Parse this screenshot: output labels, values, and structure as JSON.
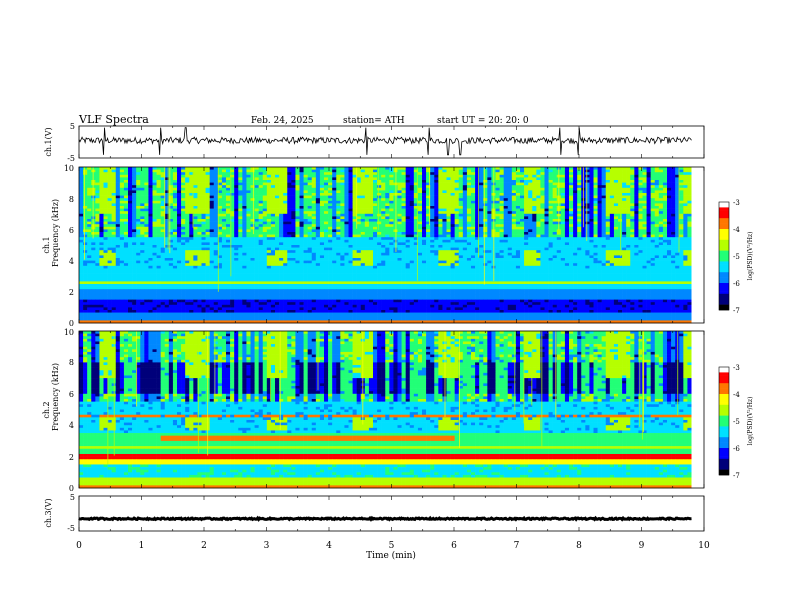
{
  "header": {
    "title": "VLF Spectra",
    "date": "Feb. 24, 2025",
    "station": "station= ATH",
    "start": "start UT = 20: 20: 0"
  },
  "chart_data": [
    {
      "type": "line",
      "ylabel": "ch.1(V)",
      "ylim": [
        -5,
        5
      ],
      "yticks": [
        "5",
        "-5"
      ],
      "xlim": [
        0,
        10
      ],
      "series": [
        {
          "baseline_V": 0.5,
          "noise_amplitude_V": 1.0,
          "spikes": [
            0.4,
            1.3,
            1.7,
            4.6,
            5.6,
            5.9,
            6.1,
            7.7,
            8.0
          ]
        }
      ]
    },
    {
      "type": "heatmap",
      "ylabel": "ch.1",
      "ylabel2": "Frequency (kHz)",
      "ylim": [
        0,
        10
      ],
      "yticks": [
        "0",
        "2",
        "4",
        "6",
        "8",
        "10"
      ],
      "xlim": [
        0,
        10
      ],
      "data_end_min": 9.8,
      "bursts_4kHz_min": [
        [
          0.3,
          0.6
        ],
        [
          1.7,
          2.1
        ],
        [
          3.0,
          3.3
        ],
        [
          4.4,
          4.7
        ],
        [
          5.75,
          6.1
        ],
        [
          7.1,
          7.4
        ],
        [
          8.45,
          8.8
        ],
        [
          9.7,
          9.8
        ]
      ]
    },
    {
      "type": "heatmap",
      "ylabel": "ch.2",
      "ylabel2": "Frequency (kHz)",
      "ylim": [
        0,
        10
      ],
      "yticks": [
        "0",
        "2",
        "4",
        "6",
        "8",
        "10"
      ],
      "xlim": [
        0,
        10
      ],
      "data_end_min": 9.8,
      "bursts_4kHz_min": [
        [
          0.3,
          0.6
        ],
        [
          1.7,
          2.1
        ],
        [
          3.0,
          3.3
        ],
        [
          4.4,
          4.7
        ],
        [
          5.75,
          6.1
        ],
        [
          7.1,
          7.4
        ],
        [
          8.45,
          8.8
        ],
        [
          9.7,
          9.8
        ]
      ]
    },
    {
      "type": "line",
      "ylabel": "ch.3(V)",
      "ylim": [
        -5,
        5
      ],
      "yticks": [
        "5",
        "-5"
      ],
      "xlim": [
        0,
        10
      ],
      "xlabel": "Time (min)",
      "xticks": [
        "0",
        "1",
        "2",
        "3",
        "4",
        "5",
        "6",
        "7",
        "8",
        "9",
        "10"
      ],
      "series": [
        {
          "baseline_V": -1.5,
          "noise_amplitude_V": 0.2
        }
      ]
    }
  ],
  "colorbars": [
    {
      "label": "log(PSD)(V²/Hz)",
      "ticks": [
        "-3",
        "-4",
        "-5",
        "-6",
        "-7"
      ],
      "range": [
        -7,
        -3
      ]
    },
    {
      "label": "log(PSD)(V²/Hz)",
      "ticks": [
        "-3",
        "-4",
        "-5",
        "-6",
        "-7"
      ],
      "range": [
        -7,
        -3
      ]
    }
  ],
  "colors": {
    "c_low": "#000000",
    "c_1": "#00007a",
    "c_2": "#0000ff",
    "c_3": "#0088ff",
    "c_4": "#00e0ff",
    "c_5": "#22ff77",
    "c_6": "#b6ff00",
    "c_7": "#ffff00",
    "c_8": "#ff7700",
    "c_9": "#ff0000",
    "c_high": "#ffffff"
  }
}
